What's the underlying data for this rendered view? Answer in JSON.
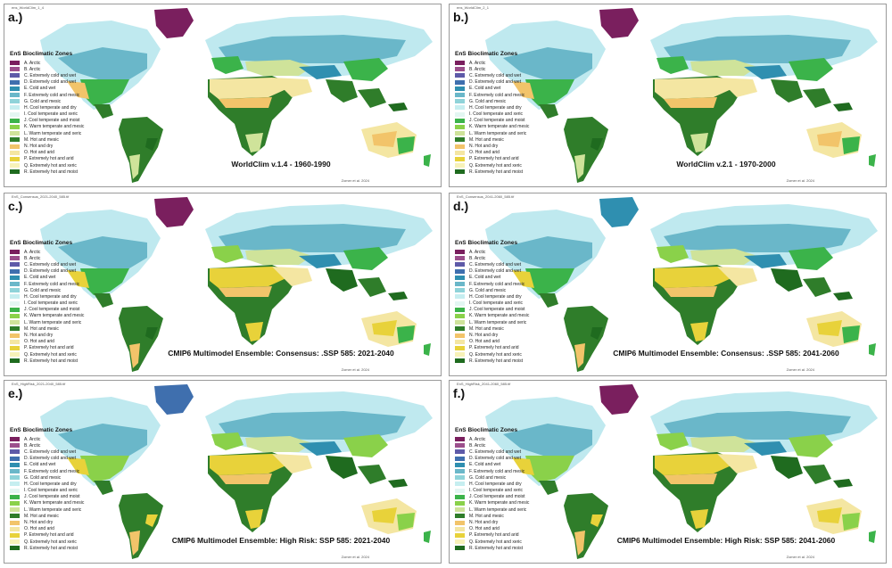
{
  "legend": {
    "title": "EnS Bioclimatic Zones",
    "items": [
      {
        "label": "A. Arctic",
        "color": "#7a1f5e"
      },
      {
        "label": "B. Arctic",
        "color": "#9c4f8c"
      },
      {
        "label": "C. Extremely cold and wet",
        "color": "#5e5aa8"
      },
      {
        "label": "D. Extremely cold and wet",
        "color": "#3f6fae"
      },
      {
        "label": "E. Cold and wet",
        "color": "#2f8fb0"
      },
      {
        "label": "F. Extremely cold and mesic",
        "color": "#6ab7c9"
      },
      {
        "label": "G. Cold and mesic",
        "color": "#8fd3d9"
      },
      {
        "label": "H. Cool temperate and dry",
        "color": "#c6eef0"
      },
      {
        "label": "I. Cool temperate and xeric",
        "color": "#e3f6f2"
      },
      {
        "label": "J. Cool temperate and moist",
        "color": "#3bb34a"
      },
      {
        "label": "K. Warm temperate and mesic",
        "color": "#8ad14a"
      },
      {
        "label": "L. Warm temperate and xeric",
        "color": "#cfe39a"
      },
      {
        "label": "M. Hot and mesic",
        "color": "#2f7d2a"
      },
      {
        "label": "N. Hot and dry",
        "color": "#f2c46a"
      },
      {
        "label": "O. Hot and arid",
        "color": "#f4e6a2"
      },
      {
        "label": "P. Extremely hot and arid",
        "color": "#e8d23a"
      },
      {
        "label": "Q. Extremely hot and xeric",
        "color": "#f7f2b8"
      },
      {
        "label": "R. Extremely hot and moist",
        "color": "#1f6b1f"
      }
    ]
  },
  "panels": [
    {
      "label": "a.)",
      "file": "ens_WorldClim_1_4",
      "title": "WorldClim v.1.4 - 1960-1990",
      "credit": "Zomer et al. 2024",
      "greenland": "#7a1f5e",
      "style": "base"
    },
    {
      "label": "b.)",
      "file": "ens_WorldClim_2_1",
      "title": "WorldClim v.2.1 - 1970-2000",
      "credit": "Zomer et al. 2024",
      "greenland": "#7a1f5e",
      "style": "base"
    },
    {
      "label": "c.)",
      "file": "EnS_Consensus_2021-2040_585.tif",
      "title": "CMIP6 Multimodel Ensemble:  Consensus: .SSP 585:   2021-2040",
      "credit": "Zomer et al. 2024",
      "greenland": "#7a1f5e",
      "style": "warm"
    },
    {
      "label": "d.)",
      "file": "EnS_Consensus_2041-2060_585.tif",
      "title": "CMIP6 Multimodel Ensemble:  Consensus: .SSP 585:   2041-2060",
      "credit": "Zomer et al. 2024",
      "greenland": "#2f8fb0",
      "style": "warm"
    },
    {
      "label": "e.)",
      "file": "EnS_HighRisk_2021-2040_585.tif",
      "title": "CMIP6 Multimodel Ensemble:  High Risk:  SSP 585:   2021-2040",
      "credit": "Zomer et al. 2024",
      "greenland": "#3f6fae",
      "style": "hot"
    },
    {
      "label": "f.)",
      "file": "EnS_HighRisk_2041-2060_585.tif",
      "title": "CMIP6 Multimodel Ensemble:  High Risk:  SSP 585:   2041-2060",
      "credit": "Zomer et al. 2024",
      "greenland": "#7a1f5e",
      "style": "hot"
    }
  ]
}
